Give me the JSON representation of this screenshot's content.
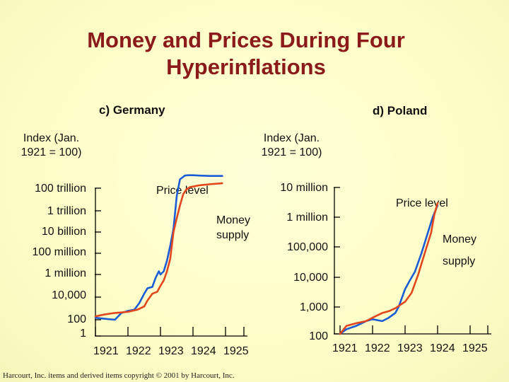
{
  "title_line1": "Money and Prices During Four",
  "title_line2": "Hyperinflations",
  "footer": "Harcourt, Inc. items and derived items copyright © 2001 by Harcourt, Inc.",
  "colors": {
    "title": "#8b1a1a",
    "money_supply": "#1a5bd6",
    "price_level": "#e2461c"
  },
  "chart_data": [
    {
      "type": "line",
      "panel_label": "c) Germany",
      "ylabel_line1": "Index (Jan.",
      "ylabel_line2": "1921 = 100)",
      "ylog": true,
      "ytick_labels": [
        "100 trillion",
        "1 trillion",
        "10 billion",
        "100 million",
        "1 million",
        "10,000",
        "100",
        "1"
      ],
      "ytick_values": [
        100000000000000.0,
        1000000000000.0,
        10000000000.0,
        100000000.0,
        1000000.0,
        10000.0,
        100.0,
        1
      ],
      "xtick_labels": [
        "1921",
        "1922",
        "1923",
        "1924",
        "1925"
      ],
      "xlim": [
        1921,
        1925
      ],
      "annotations": {
        "price_level": "Price level",
        "money_supply_line1": "Money",
        "money_supply_line2": "supply"
      },
      "series": [
        {
          "key": "money_supply",
          "x": [
            1921.0,
            1921.3,
            1921.6,
            1921.8,
            1922.0,
            1922.2,
            1922.35,
            1922.5,
            1922.6,
            1922.75,
            1922.85,
            1922.95,
            1923.0,
            1923.1,
            1923.2,
            1923.3,
            1923.4,
            1923.5,
            1923.6,
            1923.7,
            1923.75,
            1923.85,
            1924.0,
            1924.2,
            1924.5,
            1924.9
          ],
          "y": [
            150,
            120,
            100,
            400,
            600,
            800,
            3000,
            20000,
            60000,
            80000,
            500000,
            2000000,
            1000000,
            2000000,
            20000000,
            500000000,
            20000000000,
            20000000000000,
            600000000000000,
            1000000000000000,
            1300000000000000,
            1400000000000000,
            1400000000000000,
            1300000000000000,
            1200000000000000,
            1200000000000000
          ]
        },
        {
          "key": "price_level",
          "x": [
            1921.0,
            1921.3,
            1921.6,
            1922.0,
            1922.3,
            1922.5,
            1922.6,
            1922.75,
            1922.9,
            1923.0,
            1923.1,
            1923.2,
            1923.3,
            1923.4,
            1923.5,
            1923.6,
            1923.7,
            1923.8,
            1923.9,
            1924.0,
            1924.2,
            1924.5,
            1924.9
          ],
          "y": [
            200,
            300,
            400,
            500,
            800,
            1500,
            5000,
            20000,
            30000,
            100000,
            300000,
            2000000,
            30000000,
            10000000000,
            200000000000,
            3000000000000,
            30000000000000,
            80000000000000,
            120000000000000,
            140000000000000,
            180000000000000,
            220000000000000,
            270000000000000
          ]
        }
      ]
    },
    {
      "type": "line",
      "panel_label": "d) Poland",
      "ylabel_line1": "Index (Jan.",
      "ylabel_line2": "1921 = 100)",
      "ylog": true,
      "ytick_labels": [
        "10 million",
        "1 million",
        "100,000",
        "10,000",
        "1,000",
        "100"
      ],
      "ytick_values": [
        10000000,
        1000000,
        100000,
        10000,
        1000,
        100
      ],
      "xtick_labels": [
        "1921",
        "1922",
        "1923",
        "1924",
        "1925"
      ],
      "xlim": [
        1921,
        1925
      ],
      "annotations": {
        "price_level": "Price level",
        "money_supply_line1": "Money",
        "money_supply_line2": "supply"
      },
      "series": [
        {
          "key": "money_supply",
          "x": [
            1921.0,
            1921.2,
            1921.5,
            1921.8,
            1922.0,
            1922.3,
            1922.5,
            1922.7,
            1922.8,
            1922.9,
            1923.0,
            1923.15,
            1923.3,
            1923.5,
            1923.7,
            1923.85,
            1924.0
          ],
          "y": [
            100,
            150,
            200,
            300,
            350,
            300,
            400,
            600,
            1000,
            2000,
            4000,
            8000,
            15000,
            60000,
            300000,
            1000000,
            2500000
          ]
        },
        {
          "key": "price_level",
          "x": [
            1921.0,
            1921.2,
            1921.5,
            1921.8,
            1922.0,
            1922.3,
            1922.5,
            1922.7,
            1923.0,
            1923.2,
            1923.4,
            1923.6,
            1923.8,
            1923.9,
            1924.0
          ],
          "y": [
            100,
            200,
            250,
            300,
            400,
            600,
            700,
            900,
            1500,
            3000,
            12000,
            60000,
            300000,
            1200000,
            3000000
          ]
        }
      ]
    }
  ]
}
